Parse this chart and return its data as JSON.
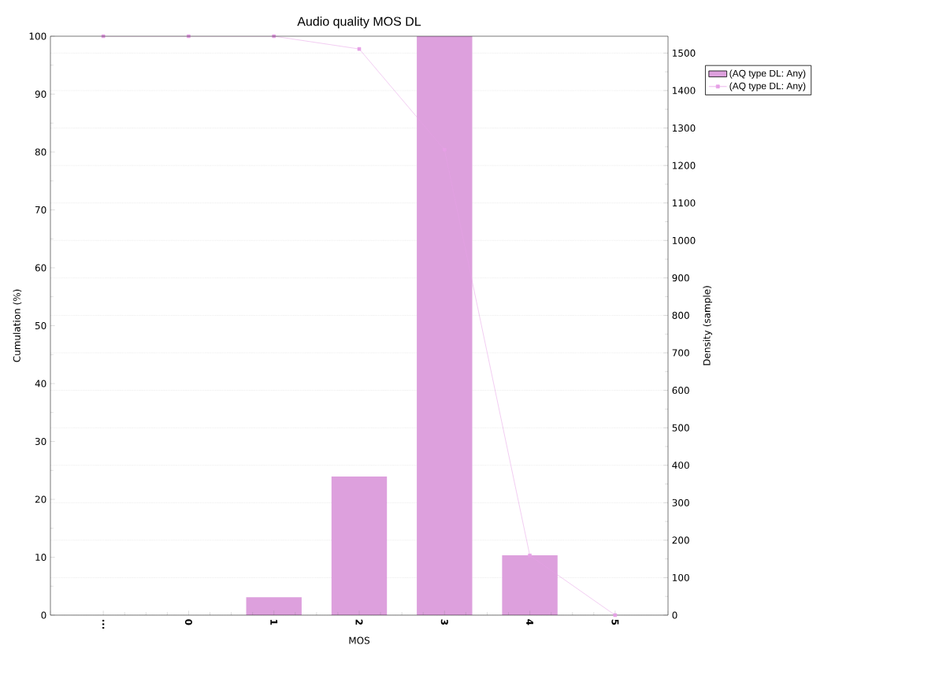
{
  "chart_data": {
    "type": "bar",
    "title": "Audio quality MOS DL",
    "xlabel": "MOS",
    "ylabel": "Cumulation (%)",
    "y2label": "Density (sample)",
    "categories": [
      "...",
      "0",
      "1",
      "2",
      "3",
      "4",
      "5"
    ],
    "series": [
      {
        "name": "(AQ type DL: Any)",
        "axis": "y2",
        "color": "#dda0dd",
        "values": [
          0,
          0,
          48,
          370,
          1545,
          160,
          0
        ]
      },
      {
        "name": "(AQ type DL: Any)",
        "type": "line",
        "color": "#e6a0e6",
        "marker": "square",
        "values": [
          100,
          100,
          100,
          97.8,
          80.4,
          10.3,
          0
        ]
      }
    ],
    "ylim": [
      0,
      100
    ],
    "yticks": [
      0,
      10,
      20,
      30,
      40,
      50,
      60,
      70,
      80,
      90,
      100
    ],
    "y2lim": [
      0,
      1545
    ],
    "y2ticks": [
      0,
      100,
      200,
      300,
      400,
      500,
      600,
      700,
      800,
      900,
      1000,
      1100,
      1200,
      1300,
      1400,
      1500
    ],
    "grid": "y",
    "legend": "top right"
  }
}
